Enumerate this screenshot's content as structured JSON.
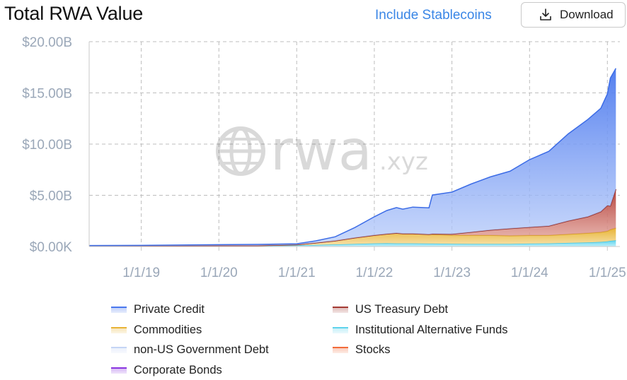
{
  "header": {
    "title": "Total RWA Value",
    "stablecoins_link": "Include Stablecoins",
    "download_label": "Download"
  },
  "watermark": {
    "text_main": "rwa",
    "text_suffix": ".xyz"
  },
  "colors": {
    "private_credit": "#4a78ee",
    "us_treasury": "#a33a33",
    "commodities": "#e8b437",
    "institutional_alt": "#5fd3ec",
    "non_us_gov": "#c5d5f5",
    "stocks": "#f26b3a",
    "corporate_bonds": "#8a35e0",
    "link": "#3a86e6",
    "axis_text": "#9aa7b8"
  },
  "legend": [
    {
      "name": "Private Credit",
      "color": "#4a78ee"
    },
    {
      "name": "US Treasury Debt",
      "color": "#a33a33"
    },
    {
      "name": "Commodities",
      "color": "#e8b437"
    },
    {
      "name": "Institutional Alternative Funds",
      "color": "#5fd3ec"
    },
    {
      "name": "non-US Government Debt",
      "color": "#c5d5f5"
    },
    {
      "name": "Stocks",
      "color": "#f26b3a"
    },
    {
      "name": "Corporate Bonds",
      "color": "#8a35e0"
    }
  ],
  "chart_data": {
    "type": "area",
    "stacked": true,
    "title": "Total RWA Value",
    "y_unit": "USD billions",
    "ylim": [
      0,
      20
    ],
    "xlim": [
      "2018-05-01",
      "2025-03-01"
    ],
    "yticks": [
      {
        "value": 0,
        "label": "$0.00K"
      },
      {
        "value": 5,
        "label": "$5.00B"
      },
      {
        "value": 10,
        "label": "$10.00B"
      },
      {
        "value": 15,
        "label": "$15.00B"
      },
      {
        "value": 20,
        "label": "$20.00B"
      }
    ],
    "xticks": [
      {
        "value": "2019-01-01",
        "label": "1/1/19"
      },
      {
        "value": "2020-01-01",
        "label": "1/1/20"
      },
      {
        "value": "2021-01-01",
        "label": "1/1/21"
      },
      {
        "value": "2022-01-01",
        "label": "1/1/22"
      },
      {
        "value": "2023-01-01",
        "label": "1/1/23"
      },
      {
        "value": "2024-01-01",
        "label": "1/1/24"
      },
      {
        "value": "2025-01-01",
        "label": "1/1/25"
      }
    ],
    "grid": true,
    "legend_position": "bottom",
    "dates": [
      "2018-05-01",
      "2019-01-01",
      "2020-01-01",
      "2020-07-01",
      "2021-01-01",
      "2021-04-01",
      "2021-07-01",
      "2021-10-01",
      "2022-01-01",
      "2022-03-01",
      "2022-04-15",
      "2022-05-15",
      "2022-07-01",
      "2022-09-15",
      "2022-10-01",
      "2023-01-01",
      "2023-04-01",
      "2023-07-01",
      "2023-10-01",
      "2024-01-01",
      "2024-04-01",
      "2024-07-01",
      "2024-10-01",
      "2024-12-01",
      "2025-01-01",
      "2025-01-15",
      "2025-02-10"
    ],
    "series": [
      {
        "name": "Institutional Alternative Funds",
        "values": [
          0.05,
          0.06,
          0.08,
          0.09,
          0.12,
          0.15,
          0.2,
          0.25,
          0.3,
          0.32,
          0.3,
          0.3,
          0.3,
          0.28,
          0.28,
          0.26,
          0.25,
          0.25,
          0.25,
          0.28,
          0.3,
          0.35,
          0.4,
          0.45,
          0.5,
          0.55,
          0.6
        ]
      },
      {
        "name": "Commodities",
        "values": [
          0,
          0,
          0,
          0,
          0.05,
          0.2,
          0.35,
          0.6,
          0.8,
          0.9,
          1.0,
          0.95,
          0.95,
          0.9,
          0.9,
          0.85,
          0.85,
          0.85,
          0.8,
          0.8,
          0.8,
          0.85,
          0.9,
          0.95,
          1.0,
          1.1,
          1.2
        ]
      },
      {
        "name": "US Treasury Debt",
        "values": [
          0,
          0,
          0,
          0,
          0,
          0,
          0,
          0,
          0,
          0,
          0,
          0,
          0,
          0,
          0.05,
          0.1,
          0.3,
          0.5,
          0.7,
          0.8,
          0.9,
          1.3,
          1.6,
          2.0,
          2.5,
          2.3,
          3.8
        ]
      },
      {
        "name": "Private Credit",
        "values": [
          0.05,
          0.05,
          0.1,
          0.12,
          0.1,
          0.2,
          0.4,
          1.0,
          1.8,
          2.3,
          2.5,
          2.4,
          2.6,
          2.6,
          3.8,
          4.1,
          4.7,
          5.2,
          5.6,
          6.6,
          7.3,
          8.5,
          9.5,
          10.1,
          10.9,
          12.5,
          11.8
        ]
      }
    ]
  }
}
